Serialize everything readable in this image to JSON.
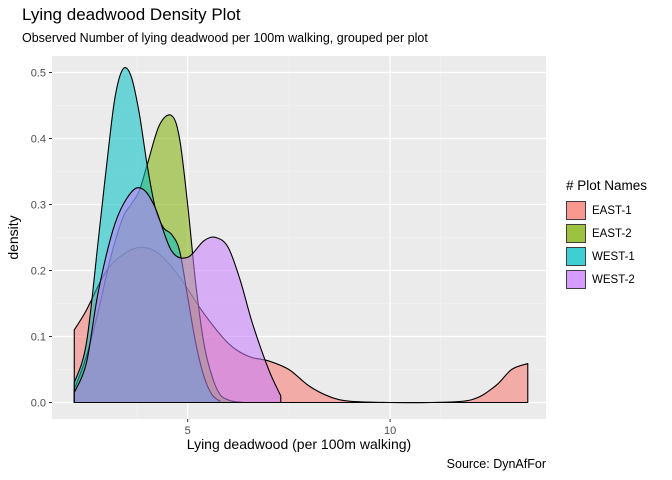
{
  "chart_data": {
    "type": "area",
    "title": "Lying deadwood Density Plot",
    "subtitle": "Observed Number of lying deadwood per 100m walking, grouped per plot",
    "caption": "Source: DynAfFor",
    "xlabel": "Lying deadwood (per 100m walking)",
    "ylabel": "density",
    "xlim": [
      1.65,
      13.85
    ],
    "ylim": [
      -0.025,
      0.525
    ],
    "xticks": [
      5,
      10
    ],
    "yticks": [
      0.0,
      0.1,
      0.2,
      0.3,
      0.4,
      0.5
    ],
    "ytick_labels": [
      "0.0",
      "0.1",
      "0.2",
      "0.3",
      "0.4",
      "0.5"
    ],
    "grid": true,
    "legend_title": "# Plot Names",
    "legend_position": "right",
    "series": [
      {
        "name": "EAST-1",
        "color": "#F8766D",
        "x": [
          2.2,
          2.5,
          3.0,
          3.5,
          3.9,
          4.3,
          4.8,
          5.4,
          6.0,
          6.5,
          7.0,
          7.5,
          8.0,
          8.5,
          9.0,
          10.0,
          11.0,
          12.0,
          12.6,
          13.0,
          13.4
        ],
        "y": [
          0.11,
          0.14,
          0.2,
          0.228,
          0.235,
          0.225,
          0.19,
          0.135,
          0.09,
          0.07,
          0.063,
          0.05,
          0.025,
          0.009,
          0.002,
          0.0,
          0.0,
          0.004,
          0.025,
          0.05,
          0.059
        ]
      },
      {
        "name": "EAST-2",
        "color": "#7CAE00",
        "x": [
          2.2,
          2.5,
          2.8,
          3.1,
          3.4,
          3.6,
          3.8,
          4.0,
          4.3,
          4.6,
          4.8,
          5.0,
          5.2,
          5.4,
          5.6,
          5.8,
          6.0,
          6.2,
          6.4
        ],
        "y": [
          0.02,
          0.07,
          0.14,
          0.22,
          0.28,
          0.3,
          0.32,
          0.36,
          0.42,
          0.435,
          0.4,
          0.3,
          0.18,
          0.09,
          0.04,
          0.012,
          0.004,
          0.001,
          0.0
        ]
      },
      {
        "name": "WEST-1",
        "color": "#00BFC4",
        "x": [
          2.2,
          2.5,
          2.8,
          3.0,
          3.2,
          3.4,
          3.6,
          3.8,
          4.0,
          4.2,
          4.4,
          4.6,
          4.8,
          5.0,
          5.2,
          5.4,
          5.6,
          5.8
        ],
        "y": [
          0.03,
          0.09,
          0.25,
          0.36,
          0.46,
          0.505,
          0.495,
          0.44,
          0.36,
          0.295,
          0.265,
          0.255,
          0.23,
          0.16,
          0.09,
          0.04,
          0.012,
          0.002
        ]
      },
      {
        "name": "WEST-2",
        "color": "#C77CFF",
        "x": [
          2.2,
          2.5,
          2.8,
          3.2,
          3.6,
          3.9,
          4.2,
          4.6,
          5.0,
          5.4,
          5.7,
          6.0,
          6.3,
          6.6,
          7.0,
          7.3
        ],
        "y": [
          0.015,
          0.06,
          0.17,
          0.27,
          0.318,
          0.323,
          0.295,
          0.23,
          0.22,
          0.245,
          0.25,
          0.235,
          0.185,
          0.12,
          0.05,
          0.01
        ]
      }
    ]
  }
}
